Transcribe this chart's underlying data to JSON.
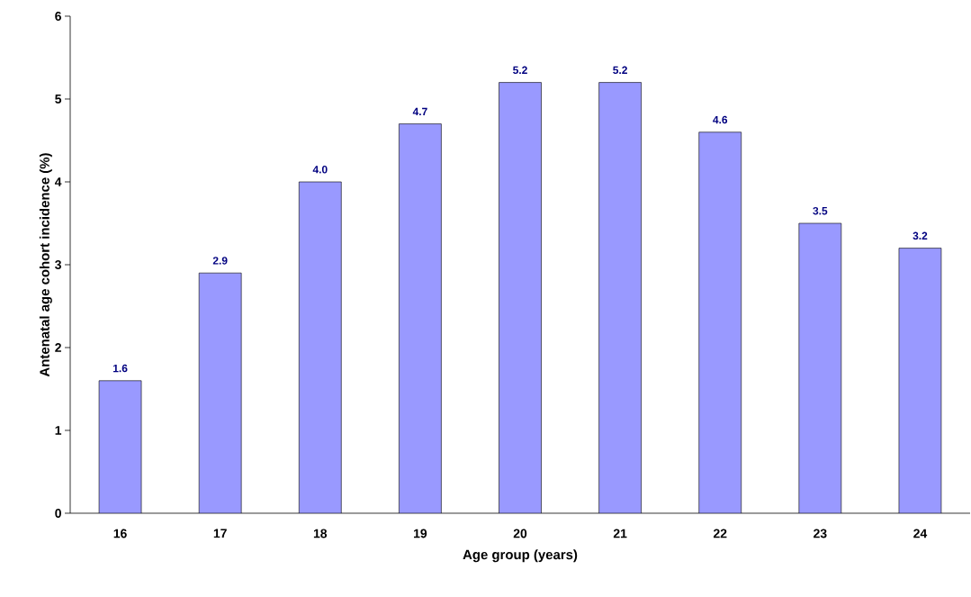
{
  "chart_data": {
    "type": "bar",
    "xlabel": "Age group (years)",
    "ylabel": "Antenatal age cohort incidence (%)",
    "categories": [
      "16",
      "17",
      "18",
      "19",
      "20",
      "21",
      "22",
      "23",
      "24"
    ],
    "values": [
      1.6,
      2.9,
      4.0,
      4.7,
      5.2,
      5.2,
      4.6,
      3.5,
      3.2
    ],
    "value_labels": [
      "1.6",
      "2.9",
      "4.0",
      "4.7",
      "5.2",
      "5.2",
      "4.6",
      "3.5",
      "3.2"
    ],
    "color": "#9999ff",
    "ylim": [
      0,
      6
    ],
    "yticks": [
      0,
      1,
      2,
      3,
      4,
      5,
      6
    ],
    "grid": false
  }
}
